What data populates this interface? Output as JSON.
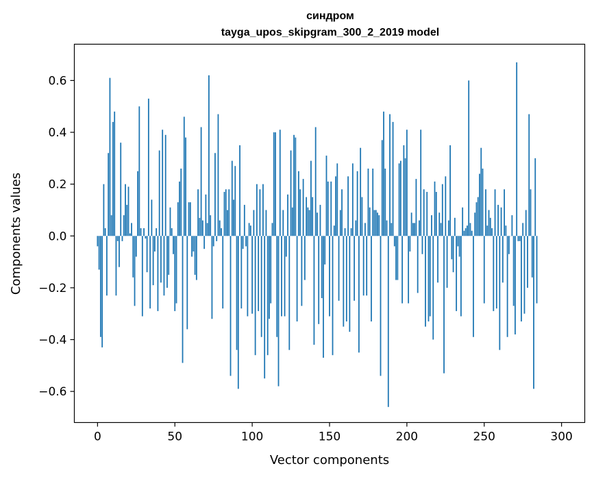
{
  "chart_data": {
    "type": "bar",
    "title": "синдром",
    "subtitle": "tayga_upos_skipgram_300_2_2019 model",
    "xlabel": "Vector components",
    "ylabel": "Components values",
    "xlim": [
      -15,
      315
    ],
    "ylim": [
      -0.72,
      0.74
    ],
    "xticks": [
      0,
      50,
      100,
      150,
      200,
      250,
      300
    ],
    "yticks": [
      -0.6,
      -0.4,
      -0.2,
      0.0,
      0.2,
      0.4,
      0.6
    ],
    "ytick_labels": [
      "−0.6",
      "−0.4",
      "−0.2",
      "0.0",
      "0.2",
      "0.4",
      "0.6"
    ],
    "bar_color": "#1f77b4",
    "grid": false,
    "values": [
      -0.04,
      -0.13,
      -0.39,
      -0.43,
      0.2,
      0.03,
      -0.23,
      0.32,
      0.61,
      0.08,
      0.44,
      0.48,
      -0.23,
      -0.02,
      -0.12,
      0.36,
      -0.02,
      0.08,
      0.2,
      0.12,
      0.19,
      0.01,
      0.05,
      -0.16,
      -0.27,
      -0.08,
      0.25,
      0.5,
      0.03,
      -0.31,
      0.03,
      -0.01,
      -0.14,
      0.53,
      -0.28,
      0.14,
      -0.19,
      -0.06,
      0.03,
      -0.29,
      0.33,
      -0.18,
      0.41,
      -0.23,
      0.39,
      -0.2,
      -0.15,
      0.11,
      0.03,
      -0.07,
      -0.29,
      -0.26,
      0.13,
      0.21,
      0.26,
      -0.49,
      0.46,
      0.38,
      -0.36,
      0.13,
      0.13,
      -0.08,
      -0.06,
      -0.15,
      -0.17,
      0.18,
      0.07,
      0.42,
      0.06,
      -0.05,
      0.16,
      0.05,
      0.62,
      0.08,
      -0.32,
      -0.04,
      0.32,
      -0.02,
      0.47,
      0.06,
      0.03,
      -0.28,
      0.17,
      0.18,
      0.1,
      0.18,
      -0.54,
      0.29,
      0.14,
      0.27,
      -0.44,
      -0.59,
      0.35,
      -0.28,
      -0.05,
      0.12,
      -0.04,
      -0.31,
      0.05,
      0.04,
      -0.3,
      0.1,
      -0.46,
      0.2,
      -0.29,
      0.18,
      -0.39,
      0.2,
      -0.55,
      0.1,
      -0.46,
      -0.32,
      -0.26,
      0.05,
      0.4,
      0.4,
      -0.39,
      -0.58,
      0.41,
      -0.31,
      0.1,
      -0.31,
      -0.08,
      0.16,
      -0.44,
      0.33,
      0.11,
      0.39,
      0.38,
      -0.33,
      0.25,
      0.18,
      -0.27,
      0.22,
      -0.17,
      0.15,
      0.11,
      0.1,
      0.29,
      0.15,
      -0.42,
      0.42,
      0.09,
      -0.34,
      0.12,
      -0.24,
      -0.47,
      -0.11,
      0.31,
      0.21,
      -0.31,
      0.21,
      -0.46,
      0.04,
      0.23,
      0.28,
      -0.25,
      0.1,
      0.18,
      -0.35,
      0.03,
      -0.33,
      0.23,
      -0.37,
      0.03,
      0.28,
      -0.25,
      0.06,
      0.25,
      -0.45,
      0.34,
      0.15,
      -0.23,
      0.05,
      -0.23,
      0.26,
      0.11,
      -0.33,
      0.26,
      0.1,
      0.1,
      0.09,
      0.08,
      -0.54,
      0.37,
      0.48,
      0.26,
      0.06,
      -0.66,
      0.47,
      0.05,
      0.44,
      -0.04,
      -0.17,
      -0.17,
      0.28,
      0.29,
      -0.26,
      0.35,
      0.3,
      0.41,
      -0.26,
      -0.06,
      0.09,
      0.05,
      0.05,
      0.22,
      -0.22,
      0.06,
      0.41,
      -0.07,
      0.18,
      -0.35,
      0.17,
      -0.33,
      -0.31,
      0.08,
      -0.4,
      0.21,
      0.17,
      -0.18,
      0.09,
      0.05,
      0.2,
      -0.53,
      0.23,
      -0.2,
      0.06,
      0.35,
      -0.09,
      -0.14,
      0.07,
      -0.29,
      -0.04,
      -0.08,
      -0.31,
      0.11,
      0.02,
      0.03,
      0.04,
      0.6,
      0.05,
      0.02,
      -0.39,
      0.09,
      0.13,
      0.15,
      0.24,
      0.34,
      0.26,
      -0.26,
      0.18,
      0.04,
      0.1,
      0.07,
      0.03,
      -0.29,
      0.18,
      -0.28,
      0.12,
      -0.44,
      0.11,
      -0.18,
      0.18,
      0.04,
      -0.39,
      -0.07,
      0.0,
      0.08,
      -0.27,
      -0.38,
      0.67,
      -0.02,
      -0.02,
      -0.33,
      0.05,
      -0.3,
      0.1,
      -0.2,
      0.47,
      0.18,
      -0.16,
      -0.59,
      0.3,
      -0.26
    ]
  }
}
